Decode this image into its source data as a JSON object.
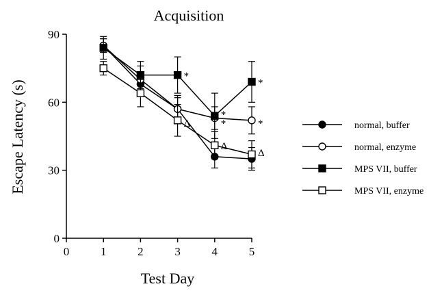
{
  "chart_data": {
    "type": "line",
    "title": "Acquisition",
    "xlabel": "Test Day",
    "ylabel": "Escape Latency (s)",
    "xlim": [
      0,
      5
    ],
    "ylim": [
      0,
      90
    ],
    "xticks": [
      0,
      1,
      2,
      3,
      4,
      5
    ],
    "yticks": [
      0,
      30,
      60,
      90
    ],
    "grid": false,
    "legend_position": "right",
    "series": [
      {
        "name": "normal, buffer",
        "marker": "filled-circle",
        "x": [
          1,
          2,
          3,
          4,
          5
        ],
        "y": [
          85,
          68,
          57,
          36,
          35
        ],
        "error": [
          3,
          5,
          5,
          5,
          5
        ]
      },
      {
        "name": "normal, enzyme",
        "marker": "open-circle",
        "x": [
          1,
          2,
          3,
          4,
          5
        ],
        "y": [
          85,
          70,
          57,
          53,
          52
        ],
        "error": [
          3,
          6,
          6,
          5,
          6
        ]
      },
      {
        "name": "MPS VII, buffer",
        "marker": "filled-square",
        "x": [
          1,
          2,
          3,
          4,
          5
        ],
        "y": [
          84,
          72,
          72,
          54,
          69
        ],
        "error": [
          5,
          6,
          8,
          10,
          9
        ]
      },
      {
        "name": "MPS VII, enzyme",
        "marker": "open-square",
        "x": [
          1,
          2,
          3,
          4,
          5
        ],
        "y": [
          75,
          64,
          52,
          41,
          37
        ],
        "error": [
          3,
          6,
          7,
          6,
          6
        ]
      }
    ],
    "annotations": [
      {
        "text": "*",
        "x": 3,
        "y": 72
      },
      {
        "text": "*",
        "x": 4,
        "y": 55
      },
      {
        "text": "*",
        "x": 4,
        "y": 51
      },
      {
        "text": "*",
        "x": 5,
        "y": 69
      },
      {
        "text": "*",
        "x": 5,
        "y": 51
      },
      {
        "text": "Δ",
        "x": 3,
        "y": 51
      },
      {
        "text": "Δ",
        "x": 4,
        "y": 41
      },
      {
        "text": "Δ",
        "x": 5,
        "y": 38
      }
    ]
  }
}
